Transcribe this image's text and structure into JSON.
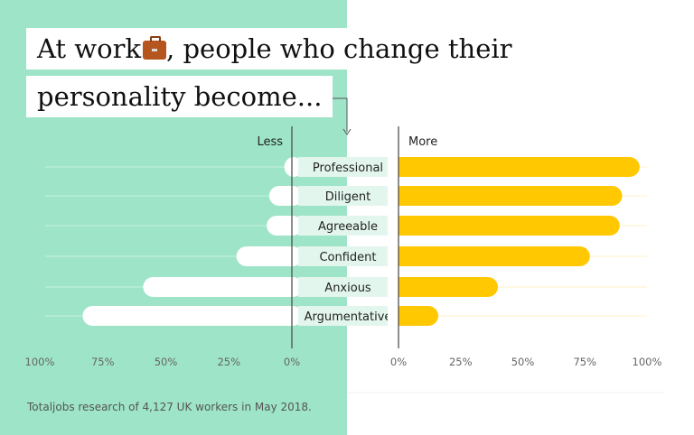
{
  "title": {
    "line1_pre": "At work",
    "line1_post": ", people who change their",
    "line2": "personality become...",
    "icon": "briefcase-icon"
  },
  "footer": "Totaljobs research of 4,127 UK workers in May 2018.",
  "colors": {
    "left_bg": "#9ee4c9",
    "less_bar": "#ffffff",
    "more_bar": "#ffc800",
    "label_bg": "#e3f6ee"
  },
  "chart_data": {
    "type": "bar",
    "categories": [
      "Professional",
      "Diligent",
      "Agreeable",
      "Confident",
      "Anxious",
      "Argumentative"
    ],
    "series": [
      {
        "name": "Less",
        "values": [
          3,
          9,
          10,
          22,
          59,
          83
        ]
      },
      {
        "name": "More",
        "values": [
          97,
          90,
          89,
          77,
          40,
          16
        ]
      }
    ],
    "left_ticks": [
      "100%",
      "75%",
      "50%",
      "25%",
      "0%"
    ],
    "right_ticks": [
      "0%",
      "25%",
      "50%",
      "75%",
      "100%"
    ],
    "xlim": [
      0,
      100
    ],
    "less_label": "Less",
    "more_label": "More"
  }
}
